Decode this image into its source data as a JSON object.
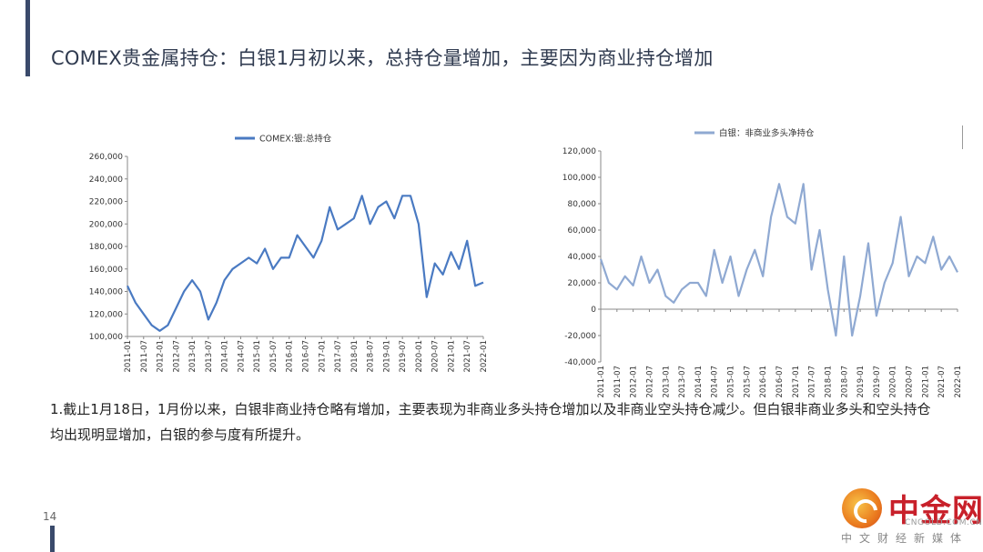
{
  "slide": {
    "title": "COMEX贵金属持仓：白银1月初以来，总持仓量增加，主要因为商业持仓增加",
    "body": "1.截止1月18日，1月份以来，白银非商业持仓略有增加，主要表现为非商业多头持仓增加以及非商业空头持仓减少。但白银非商业多头和空头持仓均出现明显增加，白银的参与度有所提升。",
    "page_number": "14"
  },
  "logo": {
    "text_cn": "中金网",
    "domain": "CNGOLD.COM.CN",
    "tagline": "中文财经新媒体"
  },
  "colors": {
    "accent": "#3a4a6b",
    "title": "#2f3a4f",
    "series_left": "#4a7ac2",
    "series_right": "#8fa9d2"
  },
  "chart_data": [
    {
      "type": "line",
      "legend": "COMEX:银:总持仓",
      "legend_position": "top-center",
      "grid": false,
      "ylim": [
        100000,
        260000
      ],
      "yticks": [
        "100,000",
        "120,000",
        "140,000",
        "160,000",
        "180,000",
        "200,000",
        "220,000",
        "240,000",
        "260,000"
      ],
      "xticks": [
        "2011-01",
        "2011-07",
        "2012-01",
        "2012-07",
        "2013-01",
        "2013-07",
        "2014-01",
        "2014-07",
        "2015-01",
        "2015-07",
        "2016-01",
        "2016-07",
        "2017-01",
        "2017-07",
        "2018-01",
        "2018-07",
        "2019-01",
        "2019-07",
        "2020-01",
        "2020-07",
        "2021-01",
        "2021-07",
        "2022-01"
      ],
      "series": [
        {
          "x": [
            "2011-01",
            "2011-04",
            "2011-07",
            "2011-10",
            "2012-01",
            "2012-04",
            "2012-07",
            "2012-10",
            "2013-01",
            "2013-04",
            "2013-07",
            "2013-10",
            "2014-01",
            "2014-04",
            "2014-07",
            "2014-10",
            "2015-01",
            "2015-04",
            "2015-07",
            "2015-10",
            "2016-01",
            "2016-04",
            "2016-07",
            "2016-10",
            "2017-01",
            "2017-04",
            "2017-07",
            "2017-10",
            "2018-01",
            "2018-04",
            "2018-07",
            "2018-10",
            "2019-01",
            "2019-04",
            "2019-07",
            "2019-10",
            "2020-01",
            "2020-04",
            "2020-07",
            "2020-10",
            "2021-01",
            "2021-04",
            "2021-07",
            "2021-10",
            "2022-01"
          ],
          "values": [
            145000,
            130000,
            120000,
            110000,
            105000,
            110000,
            125000,
            140000,
            150000,
            140000,
            115000,
            130000,
            150000,
            160000,
            165000,
            170000,
            165000,
            178000,
            160000,
            170000,
            170000,
            190000,
            180000,
            170000,
            185000,
            215000,
            195000,
            200000,
            205000,
            225000,
            200000,
            215000,
            220000,
            205000,
            225000,
            225000,
            200000,
            135000,
            165000,
            155000,
            175000,
            160000,
            185000,
            145000,
            148000
          ]
        }
      ]
    },
    {
      "type": "line",
      "legend": "白银：非商业多头净持仓",
      "legend_position": "top-center",
      "grid": false,
      "ylim": [
        -40000,
        120000
      ],
      "yticks": [
        "-40,000",
        "-20,000",
        "0",
        "20,000",
        "40,000",
        "60,000",
        "80,000",
        "100,000",
        "120,000"
      ],
      "xticks": [
        "2011-01",
        "2011-07",
        "2012-01",
        "2012-07",
        "2013-01",
        "2013-07",
        "2014-01",
        "2014-07",
        "2015-01",
        "2015-07",
        "2016-01",
        "2016-07",
        "2017-01",
        "2017-07",
        "2018-01",
        "2018-07",
        "2019-01",
        "2019-07",
        "2020-01",
        "2020-07",
        "2021-01",
        "2021-07",
        "2022-01"
      ],
      "series": [
        {
          "x": [
            "2011-01",
            "2011-04",
            "2011-07",
            "2011-10",
            "2012-01",
            "2012-04",
            "2012-07",
            "2012-10",
            "2013-01",
            "2013-04",
            "2013-07",
            "2013-10",
            "2014-01",
            "2014-04",
            "2014-07",
            "2014-10",
            "2015-01",
            "2015-04",
            "2015-07",
            "2015-10",
            "2016-01",
            "2016-04",
            "2016-07",
            "2016-10",
            "2017-01",
            "2017-04",
            "2017-07",
            "2017-10",
            "2018-01",
            "2018-04",
            "2018-07",
            "2018-10",
            "2019-01",
            "2019-04",
            "2019-07",
            "2019-10",
            "2020-01",
            "2020-04",
            "2020-07",
            "2020-10",
            "2021-01",
            "2021-04",
            "2021-07",
            "2021-10",
            "2022-01"
          ],
          "values": [
            38000,
            20000,
            15000,
            25000,
            18000,
            40000,
            20000,
            30000,
            10000,
            5000,
            15000,
            20000,
            20000,
            10000,
            45000,
            20000,
            40000,
            10000,
            30000,
            45000,
            25000,
            70000,
            95000,
            70000,
            65000,
            95000,
            30000,
            60000,
            15000,
            -20000,
            40000,
            -20000,
            10000,
            50000,
            -5000,
            20000,
            35000,
            70000,
            25000,
            40000,
            35000,
            55000,
            30000,
            40000,
            28000
          ]
        }
      ]
    }
  ]
}
